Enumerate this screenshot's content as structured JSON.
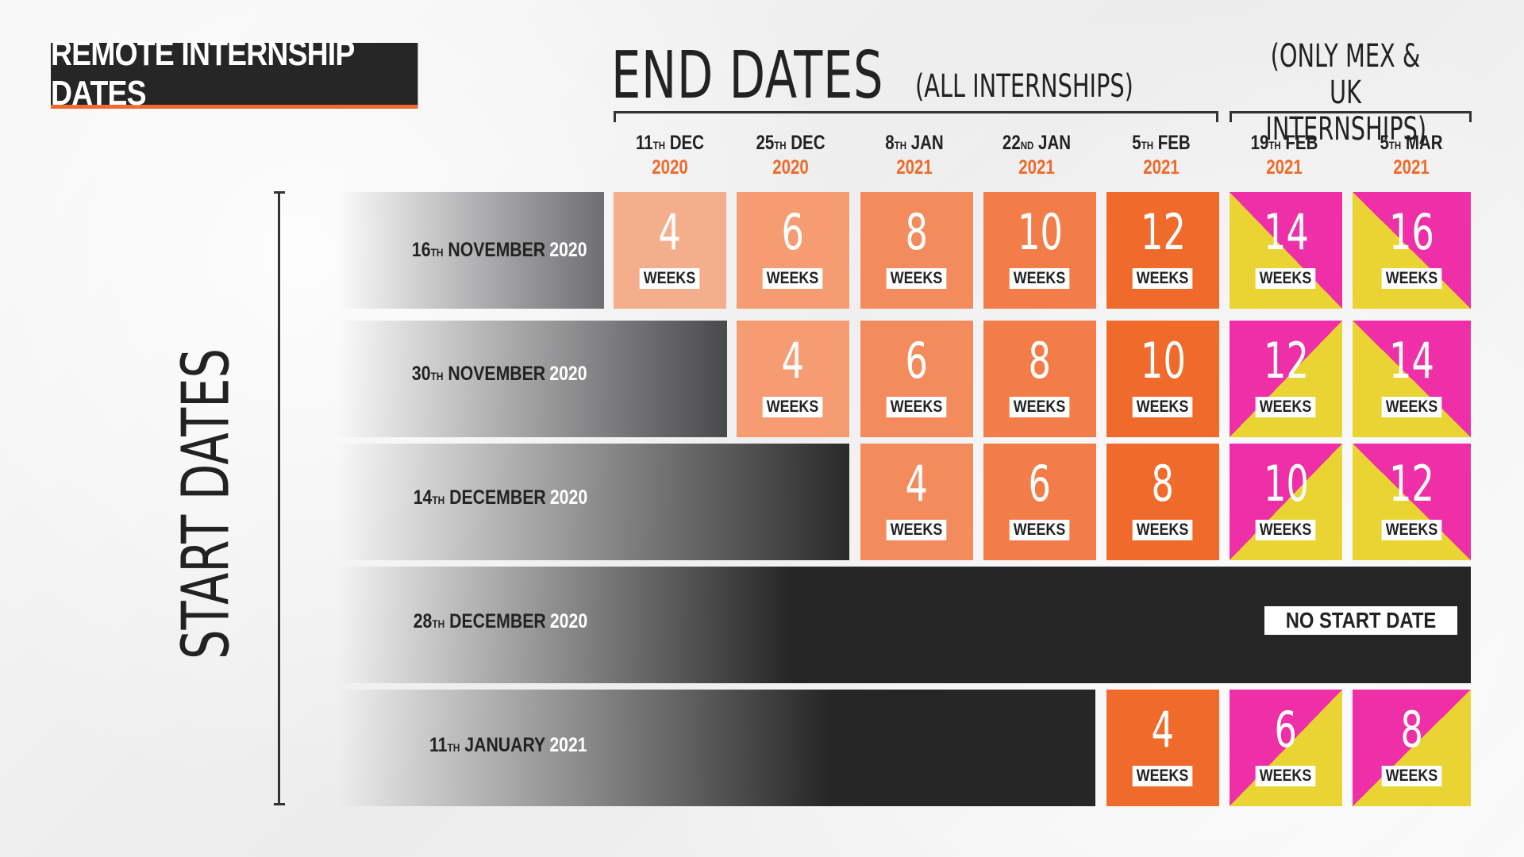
{
  "title": "REMOTE INTERNSHIP DATES",
  "end_dates": {
    "heading": "END DATES",
    "all_note": "(ALL INTERNSHIPS)",
    "mex_uk_note_line1": "(ONLY MEX & UK",
    "mex_uk_note_line2": "INTERNSHIPS)",
    "columns": [
      {
        "day": "11",
        "suffix": "TH",
        "month": "DEC",
        "year": "2020"
      },
      {
        "day": "25",
        "suffix": "TH",
        "month": "DEC",
        "year": "2020"
      },
      {
        "day": "8",
        "suffix": "TH",
        "month": "JAN",
        "year": "2021"
      },
      {
        "day": "22",
        "suffix": "ND",
        "month": "JAN",
        "year": "2021"
      },
      {
        "day": "5",
        "suffix": "TH",
        "month": "FEB",
        "year": "2021"
      },
      {
        "day": "19",
        "suffix": "TH",
        "month": "FEB",
        "year": "2021"
      },
      {
        "day": "5",
        "suffix": "TH",
        "month": "MAR",
        "year": "2021"
      }
    ]
  },
  "start_dates": {
    "heading": "START DATES",
    "rows": [
      {
        "day": "16",
        "suffix": "TH",
        "month": "NOVEMBER",
        "year": "2020",
        "weeks": [
          "4",
          "6",
          "8",
          "10",
          "12",
          "14",
          "16"
        ]
      },
      {
        "day": "30",
        "suffix": "TH",
        "month": "NOVEMBER",
        "year": "2020",
        "weeks": [
          "",
          "4",
          "6",
          "8",
          "10",
          "12",
          "14"
        ]
      },
      {
        "day": "14",
        "suffix": "TH",
        "month": "DECEMBER",
        "year": "2020",
        "weeks": [
          "",
          "",
          "4",
          "6",
          "8",
          "10",
          "12"
        ]
      },
      {
        "day": "28",
        "suffix": "TH",
        "month": "DECEMBER",
        "year": "2020",
        "weeks": [
          "",
          "",
          "",
          "",
          "",
          "",
          ""
        ]
      },
      {
        "day": "11",
        "suffix": "TH",
        "month": "JANUARY",
        "year": "2021",
        "weeks": [
          "",
          "",
          "",
          "",
          "4",
          "6",
          "8"
        ]
      }
    ]
  },
  "weeks_label": "WEEKS",
  "no_start_label": "NO START DATE",
  "colors": {
    "dark": "#262626",
    "orange": "#ef6a2b",
    "pink": "#ee2fa8",
    "yellow": "#e9d433"
  }
}
